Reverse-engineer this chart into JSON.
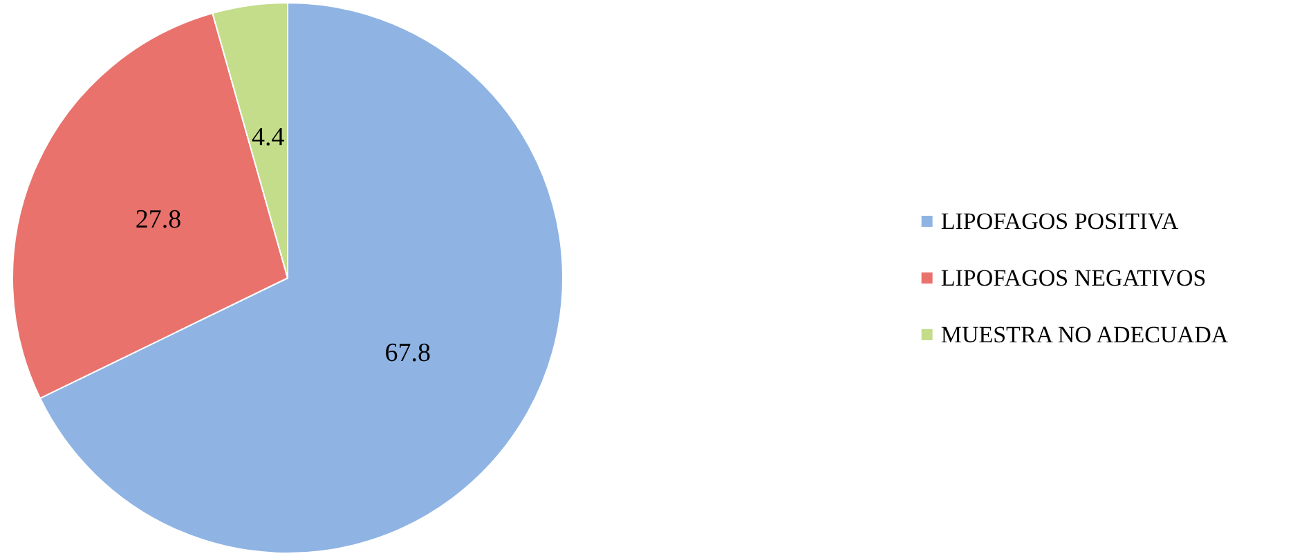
{
  "chart_data": {
    "type": "pie",
    "categories": [
      "LIPOFAGOS POSITIVA",
      "LIPOFAGOS NEGATIVOS",
      "MUESTRA NO ADECUADA"
    ],
    "values": [
      67.8,
      27.8,
      4.4
    ],
    "colors": [
      "#8fb4e3",
      "#e9726c",
      "#c4dd8a"
    ],
    "data_labels": true,
    "legend": "right"
  }
}
